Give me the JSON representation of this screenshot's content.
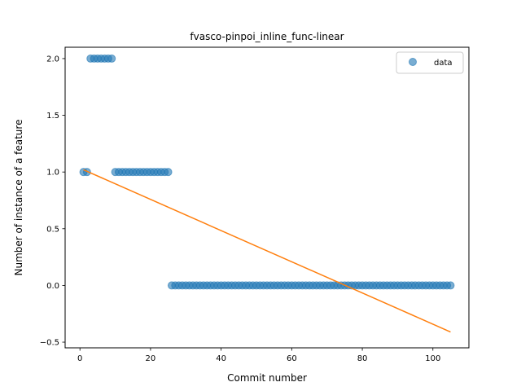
{
  "chart_data": {
    "type": "scatter",
    "title": "fvasco-pinpoi_inline_func-linear",
    "xlabel": "Commit number",
    "ylabel": "Number of instance of a feature",
    "xlim": [
      -4.2,
      110.2
    ],
    "ylim": [
      -0.55,
      2.1
    ],
    "x_ticks": [
      0,
      20,
      40,
      60,
      80,
      100
    ],
    "y_ticks": [
      -0.5,
      0.0,
      0.5,
      1.0,
      1.5,
      2.0
    ],
    "x_tick_labels": [
      "0",
      "20",
      "40",
      "60",
      "80",
      "100"
    ],
    "y_tick_labels": [
      "−0.5",
      "0.0",
      "0.5",
      "1.0",
      "1.5",
      "2.0"
    ],
    "grid": false,
    "legend_position": "top-right",
    "colors": {
      "data": "#1f77b4",
      "fit": "#ff7f0e"
    },
    "series": [
      {
        "name": "data",
        "kind": "scatter",
        "x": [
          1,
          2,
          3,
          4,
          5,
          6,
          7,
          8,
          9,
          10,
          11,
          12,
          13,
          14,
          15,
          16,
          17,
          18,
          19,
          20,
          21,
          22,
          23,
          24,
          25,
          26,
          27,
          28,
          29,
          30,
          31,
          32,
          33,
          34,
          35,
          36,
          37,
          38,
          39,
          40,
          41,
          42,
          43,
          44,
          45,
          46,
          47,
          48,
          49,
          50,
          51,
          52,
          53,
          54,
          55,
          56,
          57,
          58,
          59,
          60,
          61,
          62,
          63,
          64,
          65,
          66,
          67,
          68,
          69,
          70,
          71,
          72,
          73,
          74,
          75,
          76,
          77,
          78,
          79,
          80,
          81,
          82,
          83,
          84,
          85,
          86,
          87,
          88,
          89,
          90,
          91,
          92,
          93,
          94,
          95,
          96,
          97,
          98,
          99,
          100,
          101,
          102,
          103,
          104,
          105
        ],
        "y": [
          1,
          1,
          2,
          2,
          2,
          2,
          2,
          2,
          2,
          1,
          1,
          1,
          1,
          1,
          1,
          1,
          1,
          1,
          1,
          1,
          1,
          1,
          1,
          1,
          1,
          0,
          0,
          0,
          0,
          0,
          0,
          0,
          0,
          0,
          0,
          0,
          0,
          0,
          0,
          0,
          0,
          0,
          0,
          0,
          0,
          0,
          0,
          0,
          0,
          0,
          0,
          0,
          0,
          0,
          0,
          0,
          0,
          0,
          0,
          0,
          0,
          0,
          0,
          0,
          0,
          0,
          0,
          0,
          0,
          0,
          0,
          0,
          0,
          0,
          0,
          0,
          0,
          0,
          0,
          0,
          0,
          0,
          0,
          0,
          0,
          0,
          0,
          0,
          0,
          0,
          0,
          0,
          0,
          0,
          0,
          0,
          0,
          0,
          0,
          0,
          0,
          0,
          0,
          0,
          0
        ]
      },
      {
        "kind": "line",
        "x": [
          1,
          105
        ],
        "y": [
          1.02,
          -0.41
        ]
      }
    ]
  }
}
